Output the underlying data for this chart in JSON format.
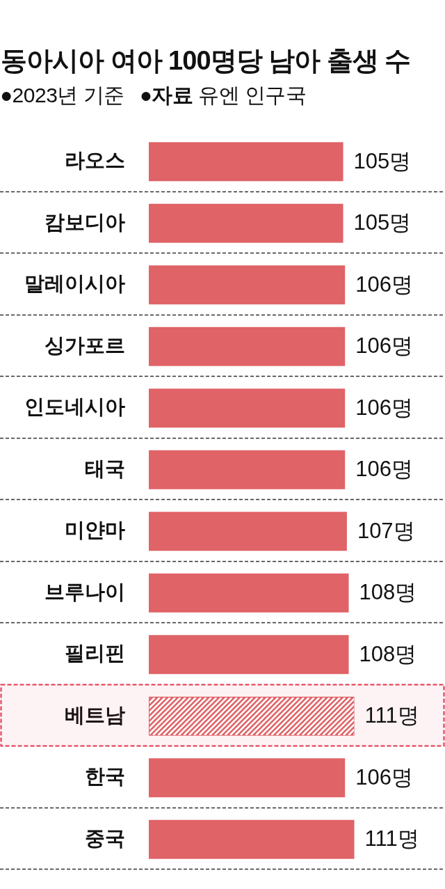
{
  "chart_data": {
    "type": "bar",
    "title": "동아시아 여아 100명당 남아 출생 수",
    "subtitle": "●2023년 기준",
    "annotations": [
      "●자료 유엔 인구국"
    ],
    "orientation": "horizontal",
    "categories": [
      "라오스",
      "캄보디아",
      "말레이시아",
      "싱가포르",
      "인도네시아",
      "태국",
      "미얀마",
      "브루나이",
      "필리핀",
      "베트남",
      "한국",
      "중국"
    ],
    "values": [
      105,
      105,
      106,
      106,
      106,
      106,
      107,
      108,
      108,
      111,
      106,
      111
    ],
    "value_labels": [
      "105명",
      "105명",
      "106명",
      "106명",
      "106명",
      "106명",
      "107명",
      "108명",
      "108명",
      "111명",
      "106명",
      "111명"
    ],
    "color": "#e06367",
    "xlim": [
      0,
      160
    ],
    "grid": "y",
    "tick_labels": "y",
    "bands": [
      {
        "axis": "y",
        "from": "베트남",
        "to": "베트남",
        "color": "#e3344d"
      }
    ]
  }
}
